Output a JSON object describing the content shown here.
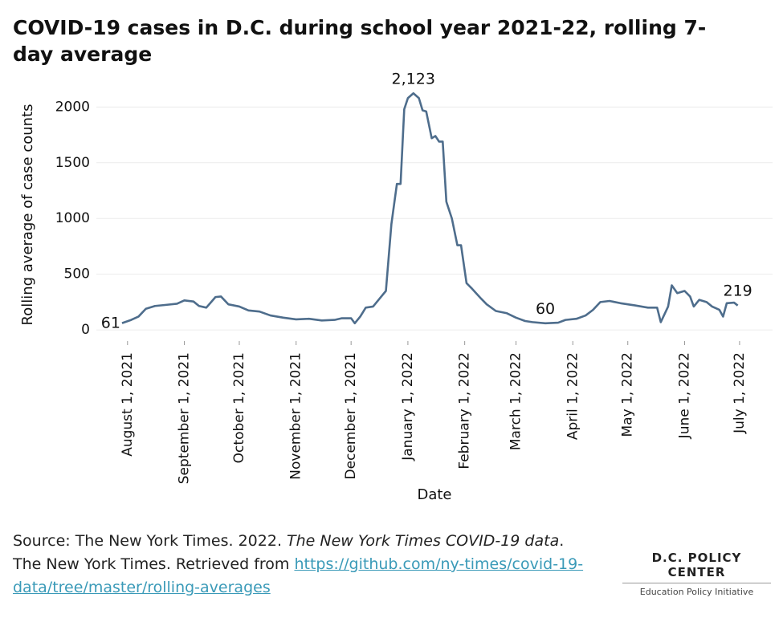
{
  "chart_data": {
    "type": "line",
    "title": "COVID-19 cases in D.C. during school year 2021-22, rolling 7-day average",
    "x_label": "Date",
    "y_label": "Rolling average of case counts",
    "grid": true,
    "xlim": [
      "2021-07-15",
      "2022-07-19"
    ],
    "ylim": [
      -100,
      2240
    ],
    "yticks": [
      0,
      500,
      1000,
      1500,
      2000
    ],
    "xticks": [
      {
        "value": "2021-08-01",
        "label": "August 1, 2021"
      },
      {
        "value": "2021-09-01",
        "label": "September 1, 2021"
      },
      {
        "value": "2021-10-01",
        "label": "October 1, 2021"
      },
      {
        "value": "2021-11-01",
        "label": "November 1, 2021"
      },
      {
        "value": "2021-12-01",
        "label": "December 1, 2021"
      },
      {
        "value": "2022-01-01",
        "label": "January 1, 2022"
      },
      {
        "value": "2022-02-01",
        "label": "February 1, 2022"
      },
      {
        "value": "2022-03-01",
        "label": "March 1, 2022"
      },
      {
        "value": "2022-04-01",
        "label": "April 1, 2022"
      },
      {
        "value": "2022-05-01",
        "label": "May 1, 2022"
      },
      {
        "value": "2022-06-01",
        "label": "June 1, 2022"
      },
      {
        "value": "2022-07-01",
        "label": "July 1, 2022"
      }
    ],
    "x": [
      "2021-07-29",
      "2021-08-03",
      "2021-08-07",
      "2021-08-11",
      "2021-08-16",
      "2021-08-22",
      "2021-08-28",
      "2021-09-01",
      "2021-09-06",
      "2021-09-09",
      "2021-09-13",
      "2021-09-18",
      "2021-09-21",
      "2021-09-25",
      "2021-10-01",
      "2021-10-06",
      "2021-10-12",
      "2021-10-18",
      "2021-10-25",
      "2021-11-01",
      "2021-11-08",
      "2021-11-15",
      "2021-11-22",
      "2021-11-26",
      "2021-12-01",
      "2021-12-03",
      "2021-12-06",
      "2021-12-09",
      "2021-12-13",
      "2021-12-17",
      "2021-12-20",
      "2021-12-23",
      "2021-12-26",
      "2021-12-28",
      "2021-12-30",
      "2022-01-01",
      "2022-01-04",
      "2022-01-07",
      "2022-01-09",
      "2022-01-11",
      "2022-01-14",
      "2022-01-16",
      "2022-01-18",
      "2022-01-20",
      "2022-01-22",
      "2022-01-25",
      "2022-01-28",
      "2022-01-30",
      "2022-02-02",
      "2022-02-05",
      "2022-02-10",
      "2022-02-13",
      "2022-02-18",
      "2022-02-24",
      "2022-03-01",
      "2022-03-06",
      "2022-03-10",
      "2022-03-17",
      "2022-03-24",
      "2022-03-28",
      "2022-04-03",
      "2022-04-08",
      "2022-04-12",
      "2022-04-16",
      "2022-04-21",
      "2022-04-27",
      "2022-05-05",
      "2022-05-12",
      "2022-05-17",
      "2022-05-19",
      "2022-05-23",
      "2022-05-25",
      "2022-05-28",
      "2022-06-01",
      "2022-06-04",
      "2022-06-06",
      "2022-06-09",
      "2022-06-13",
      "2022-06-16",
      "2022-06-20",
      "2022-06-22",
      "2022-06-24",
      "2022-06-28",
      "2022-06-30"
    ],
    "series": [
      {
        "name": "Rolling average of case counts",
        "color": "#4e6d8c",
        "values": [
          61,
          90,
          120,
          190,
          215,
          225,
          235,
          265,
          255,
          215,
          200,
          295,
          300,
          230,
          210,
          175,
          165,
          130,
          110,
          95,
          100,
          85,
          90,
          105,
          105,
          60,
          120,
          200,
          210,
          290,
          350,
          950,
          1310,
          1310,
          1980,
          2080,
          2123,
          2080,
          1970,
          1960,
          1720,
          1740,
          1690,
          1690,
          1150,
          1000,
          760,
          760,
          420,
          370,
          280,
          230,
          170,
          150,
          110,
          80,
          70,
          60,
          65,
          90,
          100,
          130,
          180,
          250,
          260,
          240,
          220,
          200,
          200,
          70,
          210,
          400,
          330,
          350,
          300,
          210,
          270,
          250,
          210,
          180,
          120,
          240,
          245,
          219
        ]
      }
    ],
    "annotations": [
      {
        "x": "2021-07-29",
        "value": 61,
        "label": "61"
      },
      {
        "x": "2022-01-04",
        "value": 2123,
        "label": "2,123"
      },
      {
        "x": "2022-03-17",
        "value": 60,
        "label": "60"
      },
      {
        "x": "2022-06-30",
        "value": 219,
        "label": "219"
      }
    ]
  },
  "source": {
    "prefix": "Source: The New York Times. 2022. ",
    "italic": "The New York Times COVID-19 data",
    "middle": ". The New York Times. Retrieved from ",
    "link": "https://github.com/ny-times/covid-19-data/tree/master/rolling-averages"
  },
  "logo": {
    "name": "D.C. POLICY CENTER",
    "subtitle": "Education Policy Initiative"
  }
}
